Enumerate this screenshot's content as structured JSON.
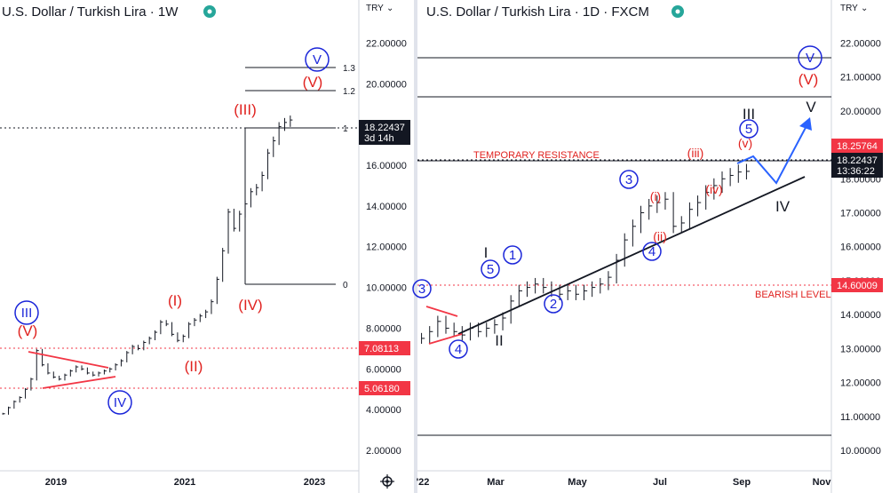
{
  "chart_data": [
    {
      "type": "bar",
      "title": "U.S. Dollar / Turkish Lira · 1W",
      "currency": "TRY",
      "ylim": [
        1.0,
        23.5
      ],
      "yticks": [
        2,
        4,
        6,
        8,
        10,
        12,
        14,
        16,
        18,
        20,
        22
      ],
      "ytick_labels": [
        "2.00000",
        "4.00000",
        "6.00000",
        "8.00000",
        "10.00000",
        "12.00000",
        "14.00000",
        "16.00000",
        "18.00000",
        "20.00000",
        "22.00000"
      ],
      "xticks": [
        "2019",
        "2021",
        "2023"
      ],
      "series": [
        {
          "name": "USDTRY weekly",
          "values": [
            3.8,
            4.1,
            4.4,
            4.6,
            5.0,
            5.5,
            6.9,
            6.2,
            5.8,
            5.6,
            5.5,
            5.7,
            5.9,
            6.1,
            6.0,
            5.8,
            5.7,
            5.8,
            5.9,
            6.0,
            6.2,
            6.4,
            6.8,
            7.1,
            7.0,
            7.3,
            7.5,
            7.8,
            8.3,
            8.2,
            7.7,
            7.4,
            7.6,
            8.2,
            8.4,
            8.6,
            8.8,
            9.3,
            10.4,
            11.8,
            13.7,
            12.9,
            13.6,
            14.1,
            14.7,
            14.9,
            15.5,
            16.6,
            17.2,
            17.9,
            18.1,
            18.22
          ]
        }
      ],
      "price_badges": [
        {
          "value": 18.22437,
          "label": "18.22437",
          "sublabel": "3d 14h",
          "color": "#131722"
        },
        {
          "value": 7.08113,
          "label": "7.08113",
          "color": "#f23645"
        },
        {
          "value": 5.0618,
          "label": "5.06180",
          "color": "#f23645"
        }
      ],
      "fib_levels": [
        {
          "label": "1.3",
          "value": 21.1
        },
        {
          "label": "1.2",
          "value": 20.1
        },
        {
          "label": "1",
          "value": 18.2
        },
        {
          "label": "0",
          "value": 10.25
        }
      ],
      "wave_labels": [
        {
          "text": "(V)",
          "value": 6.6
        },
        {
          "text": "(I)",
          "value": 9.2
        },
        {
          "text": "(II)",
          "value": 5.5
        },
        {
          "text": "(III)",
          "value": 19.0
        },
        {
          "text": "(IV)",
          "value": 8.8
        },
        {
          "text": "(V)",
          "value": 20.5
        }
      ],
      "circled_labels": [
        {
          "text": "III",
          "value": 8.5
        },
        {
          "text": "IV",
          "value": 3.9
        },
        {
          "text": "V",
          "value": 21.6
        }
      ]
    },
    {
      "type": "bar",
      "title": "U.S. Dollar / Turkish Lira · 1D · FXCM",
      "currency": "TRY",
      "ylim": [
        9.4,
        22.9
      ],
      "yticks": [
        10,
        11,
        12,
        13,
        14,
        15,
        16,
        17,
        18,
        19,
        20,
        21,
        22
      ],
      "ytick_labels": [
        "10.00000",
        "11.00000",
        "12.00000",
        "13.00000",
        "14.00000",
        "15.00000",
        "16.00000",
        "17.00000",
        "18.00000",
        "19.00000",
        "20.00000",
        "21.00000",
        "22.00000"
      ],
      "xticks": [
        "'22",
        "Mar",
        "May",
        "Jul",
        "Sep",
        "Nov"
      ],
      "series": [
        {
          "name": "USDTRY daily",
          "values": [
            13.3,
            13.5,
            13.8,
            13.6,
            13.5,
            13.4,
            13.6,
            13.5,
            13.6,
            13.7,
            13.9,
            14.4,
            14.7,
            14.8,
            14.9,
            14.8,
            14.7,
            14.6,
            14.7,
            14.6,
            14.7,
            14.8,
            14.9,
            15.1,
            15.6,
            16.2,
            16.6,
            17.0,
            17.2,
            17.3,
            17.4,
            16.6,
            16.7,
            17.1,
            17.3,
            17.6,
            17.8,
            18.0,
            18.1,
            18.2,
            18.22
          ]
        }
      ],
      "price_badges": [
        {
          "value": 18.25764,
          "label": "18.25764",
          "color": "#f23645"
        },
        {
          "value": 18.22437,
          "label": "18.22437",
          "sublabel": "13:36:22",
          "color": "#131722"
        },
        {
          "value": 14.60009,
          "label": "14.60009",
          "color": "#f23645"
        }
      ],
      "horizontal_lines": [
        21.5,
        19.95,
        18.22,
        10.3
      ],
      "annotations": [
        {
          "text": "TEMPORARY RESISTANCE",
          "value": 18.22
        },
        {
          "text": "BEARISH LEVEL",
          "value": 14.6
        }
      ],
      "wave_labels_black": [
        "I",
        "II",
        "III",
        "IV",
        "V"
      ],
      "wave_labels_red": [
        "(i)",
        "(ii)",
        "(iii)",
        "(iv)",
        "(v)",
        "(V)"
      ],
      "circled_labels": [
        "1",
        "2",
        "3",
        "4",
        "5",
        "3",
        "4",
        "5",
        "V"
      ]
    }
  ]
}
